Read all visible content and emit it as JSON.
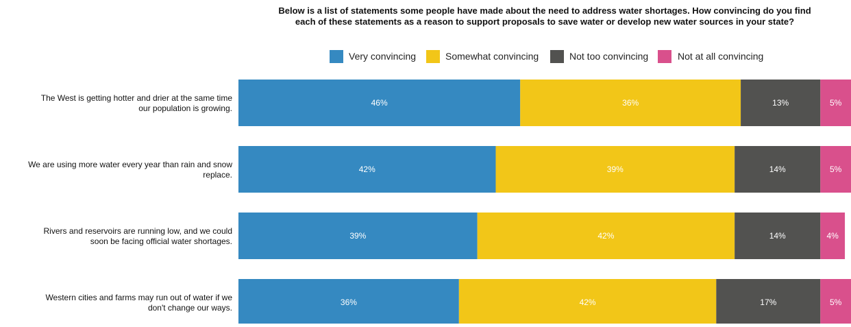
{
  "chart_data": {
    "type": "bar",
    "orientation": "horizontal",
    "stacked": true,
    "title": "Below is a list of statements some people have made about the need to address water shortages. How convincing do you find each of these statements as a reason to support proposals to save water or develop new water sources in your state?",
    "title_lines": [
      "Below is a list of statements some people have made about the need to address water shortages. How convincing do you find",
      "each of these statements as a reason to support proposals to save water or develop new water sources in your state?"
    ],
    "legend_position": "top",
    "grid": false,
    "xlim": [
      0,
      100
    ],
    "categories": [
      "The West is getting hotter and drier at the same time our population is growing.",
      "We are using more water every year than rain and snow replace.",
      "Rivers and reservoirs are running low, and we could soon be facing official water shortages.",
      "Western cities and farms may run out of water if we don't change our ways."
    ],
    "category_lines": [
      [
        "The West is getting hotter and drier at the same time",
        "our population is growing."
      ],
      [
        "We are using more water every year than rain and snow",
        "replace."
      ],
      [
        "Rivers and reservoirs are running low, and we could",
        "soon be facing official water shortages."
      ],
      [
        "Western cities and farms may run out of water if we",
        "don't change our ways."
      ]
    ],
    "series": [
      {
        "name": "Very convincing",
        "color": "#3589c1",
        "values": [
          46,
          42,
          39,
          36
        ]
      },
      {
        "name": "Somewhat convincing",
        "color": "#f2c618",
        "values": [
          36,
          39,
          42,
          42
        ]
      },
      {
        "name": "Not too convincing",
        "color": "#525250",
        "values": [
          13,
          14,
          14,
          17
        ]
      },
      {
        "name": "Not at all convincing",
        "color": "#d9508c",
        "values": [
          5,
          5,
          4,
          5
        ]
      }
    ],
    "value_suffix": "%"
  }
}
